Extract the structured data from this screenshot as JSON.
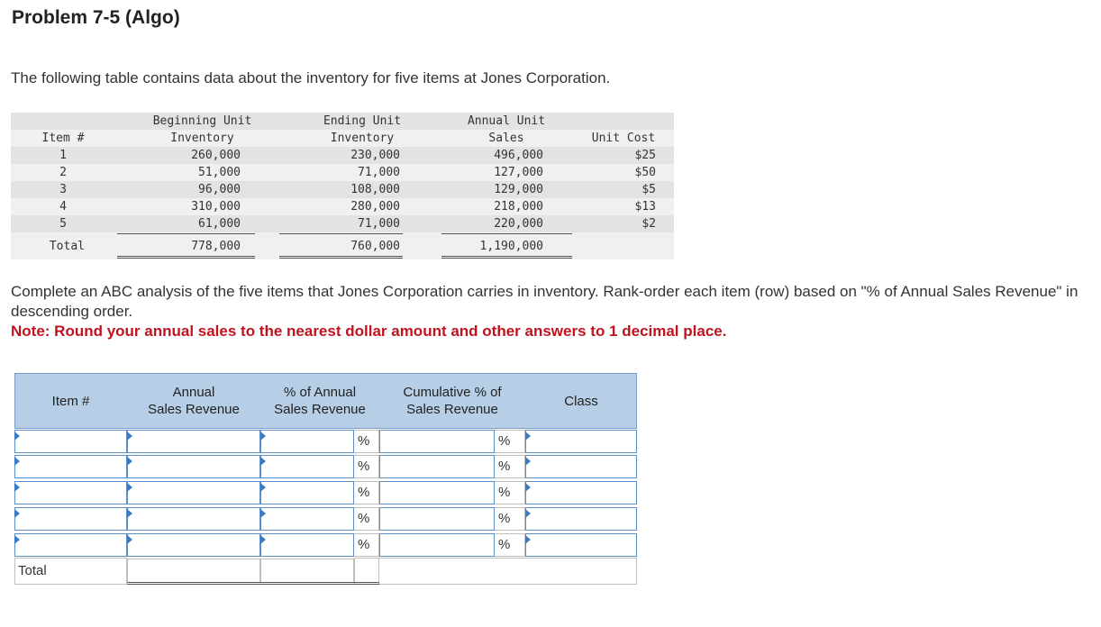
{
  "title": "Problem 7-5 (Algo)",
  "intro": "The following table contains data about the inventory for five items at Jones Corporation.",
  "inventory_table": {
    "headers": {
      "item": "Item #",
      "beginning_line1": "Beginning Unit",
      "beginning_line2": "Inventory",
      "ending_line1": "Ending Unit",
      "ending_line2": "Inventory",
      "sales_line1": "Annual Unit",
      "sales_line2": "Sales",
      "cost": "Unit Cost"
    },
    "rows": [
      {
        "item": "1",
        "beginning": "260,000",
        "ending": "230,000",
        "sales": "496,000",
        "cost": "$25"
      },
      {
        "item": "2",
        "beginning": "51,000",
        "ending": "71,000",
        "sales": "127,000",
        "cost": "$50"
      },
      {
        "item": "3",
        "beginning": "96,000",
        "ending": "108,000",
        "sales": "129,000",
        "cost": "$5"
      },
      {
        "item": "4",
        "beginning": "310,000",
        "ending": "280,000",
        "sales": "218,000",
        "cost": "$13"
      },
      {
        "item": "5",
        "beginning": "61,000",
        "ending": "71,000",
        "sales": "220,000",
        "cost": "$2"
      }
    ],
    "total": {
      "label": "Total",
      "beginning": "778,000",
      "ending": "760,000",
      "sales": "1,190,000"
    }
  },
  "instructions": "Complete an ABC analysis of the five items that Jones Corporation carries in inventory. Rank-order each item (row) based on \"% of Annual Sales Revenue\" in descending order.",
  "note": "Note: Round your annual sales to the nearest dollar amount and other answers to 1 decimal place.",
  "abc_table": {
    "headers": {
      "item": "Item #",
      "revenue_line1": "Annual",
      "revenue_line2": "Sales Revenue",
      "pct_line1": "% of Annual",
      "pct_line2": "Sales Revenue",
      "cum_line1": "Cumulative % of",
      "cum_line2": "Sales Revenue",
      "class": "Class"
    },
    "percent_symbol": "%",
    "total_label": "Total",
    "rows": [
      {
        "item": "",
        "revenue": "",
        "pct": "",
        "cum": "",
        "class": ""
      },
      {
        "item": "",
        "revenue": "",
        "pct": "",
        "cum": "",
        "class": ""
      },
      {
        "item": "",
        "revenue": "",
        "pct": "",
        "cum": "",
        "class": ""
      },
      {
        "item": "",
        "revenue": "",
        "pct": "",
        "cum": "",
        "class": ""
      },
      {
        "item": "",
        "revenue": "",
        "pct": "",
        "cum": "",
        "class": ""
      }
    ],
    "total": {
      "revenue": "",
      "pct": ""
    }
  }
}
